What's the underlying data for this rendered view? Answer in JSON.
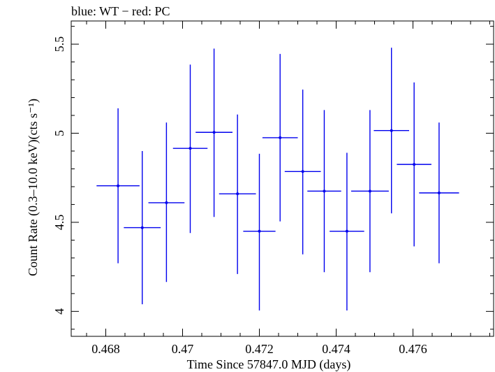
{
  "chart_data": {
    "type": "scatter",
    "title": "blue: WT − red: PC",
    "xlabel": "Time Since 57847.0 MJD (days)",
    "ylabel": "Count Rate (0.3–10.0 keV)(cts s⁻¹)",
    "xlim": [
      0.4671,
      0.4781
    ],
    "ylim": [
      3.86,
      5.63
    ],
    "x_ticks": [
      0.468,
      0.47,
      0.472,
      0.474,
      0.476
    ],
    "x_tick_labels": [
      "0.468",
      "0.47",
      "0.472",
      "0.474",
      "0.476"
    ],
    "y_ticks": [
      4.0,
      4.5,
      5.0,
      5.5
    ],
    "y_tick_labels": [
      "4",
      "4.5",
      "5",
      "5.5"
    ],
    "grid": false,
    "series": [
      {
        "color": "#0000ee",
        "points": [
          {
            "x": 0.46832,
            "xerr": 0.00056,
            "y": 4.705,
            "ylo": 4.27,
            "yhi": 5.14
          },
          {
            "x": 0.46895,
            "xerr": 0.00048,
            "y": 4.47,
            "ylo": 4.04,
            "yhi": 4.9
          },
          {
            "x": 0.46958,
            "xerr": 0.00047,
            "y": 4.61,
            "ylo": 4.165,
            "yhi": 5.06
          },
          {
            "x": 0.4702,
            "xerr": 0.00045,
            "y": 4.915,
            "ylo": 4.44,
            "yhi": 5.385
          },
          {
            "x": 0.47082,
            "xerr": 0.00048,
            "y": 5.005,
            "ylo": 4.53,
            "yhi": 5.475
          },
          {
            "x": 0.47143,
            "xerr": 0.00048,
            "y": 4.66,
            "ylo": 4.21,
            "yhi": 5.105
          },
          {
            "x": 0.472,
            "xerr": 0.00042,
            "y": 4.45,
            "ylo": 4.005,
            "yhi": 4.885
          },
          {
            "x": 0.47254,
            "xerr": 0.00046,
            "y": 4.975,
            "ylo": 4.505,
            "yhi": 5.445
          },
          {
            "x": 0.47313,
            "xerr": 0.00047,
            "y": 4.785,
            "ylo": 4.32,
            "yhi": 5.245
          },
          {
            "x": 0.47369,
            "xerr": 0.00044,
            "y": 4.675,
            "ylo": 4.22,
            "yhi": 5.13
          },
          {
            "x": 0.47428,
            "xerr": 0.00045,
            "y": 4.45,
            "ylo": 4.005,
            "yhi": 4.89
          },
          {
            "x": 0.47488,
            "xerr": 0.00049,
            "y": 4.675,
            "ylo": 4.22,
            "yhi": 5.13
          },
          {
            "x": 0.47544,
            "xerr": 0.00046,
            "y": 5.015,
            "ylo": 4.55,
            "yhi": 5.48
          },
          {
            "x": 0.47603,
            "xerr": 0.00045,
            "y": 4.825,
            "ylo": 4.365,
            "yhi": 5.285
          },
          {
            "x": 0.47668,
            "xerr": 0.00052,
            "y": 4.665,
            "ylo": 4.27,
            "yhi": 5.06
          }
        ]
      }
    ]
  }
}
